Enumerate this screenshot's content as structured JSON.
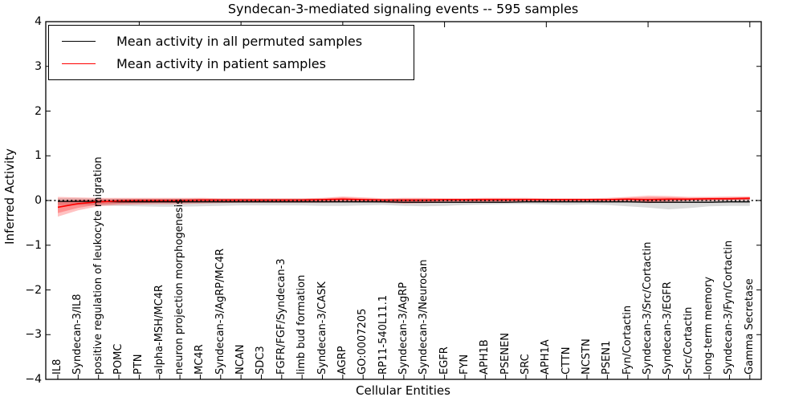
{
  "chart_data": {
    "type": "line",
    "title": "Syndecan-3-mediated signaling events -- 595 samples",
    "xlabel": "Cellular Entities",
    "ylabel": "Inferred Activity",
    "ylim": [
      -4,
      4
    ],
    "yticks": [
      4,
      3,
      2,
      1,
      0,
      -1,
      -2,
      -3,
      -4
    ],
    "ytick_labels": [
      "4",
      "3",
      "2",
      "1",
      "0",
      "−1",
      "−2",
      "−3",
      "−4"
    ],
    "grid": false,
    "zero_reference_line": true,
    "legend_position": "upper-left",
    "colors": {
      "permuted": "#000000",
      "patient": "#ff0000",
      "permuted_band": "rgba(0,0,0,0.14)",
      "patient_band": "rgba(255,0,0,0.24)"
    },
    "categories": [
      "IL8",
      "Syndecan-3/IL8",
      "positive regulation of leukocyte migration",
      "POMC",
      "PTN",
      "alpha-MSH/MC4R",
      "neuron projection morphogenesis",
      "MC4R",
      "Syndecan-3/AgRP/MC4R",
      "NCAN",
      "SDC3",
      "FGFR/FGF/Syndecan-3",
      "limb bud formation",
      "Syndecan-3/CASK",
      "AGRP",
      "GO:0007205",
      "RP11-540L11.1",
      "Syndecan-3/AgRP",
      "Syndecan-3/Neurocan",
      "EGFR",
      "FYN",
      "APH1B",
      "PSENEN",
      "SRC",
      "APH1A",
      "CTTN",
      "NCSTN",
      "PSEN1",
      "Fyn/Cortactin",
      "Syndecan-3/Src/Cortactin",
      "Syndecan-3/EGFR",
      "Src/Cortactin",
      "long-term memory",
      "Syndecan-3/Fyn/Cortactin",
      "Gamma Secretase"
    ],
    "series": [
      {
        "name": "Mean activity in all permuted samples",
        "color": "#000000",
        "values": [
          -0.02,
          -0.02,
          -0.02,
          -0.03,
          -0.03,
          -0.03,
          -0.03,
          -0.03,
          -0.03,
          -0.03,
          -0.03,
          -0.03,
          -0.03,
          -0.03,
          -0.03,
          -0.03,
          -0.03,
          -0.04,
          -0.04,
          -0.04,
          -0.04,
          -0.04,
          -0.04,
          -0.03,
          -0.03,
          -0.03,
          -0.03,
          -0.03,
          -0.03,
          -0.04,
          -0.04,
          -0.04,
          -0.04,
          -0.03,
          -0.03
        ],
        "band_upper": [
          0.05,
          0.05,
          0.04,
          0.04,
          0.04,
          0.04,
          0.04,
          0.04,
          0.04,
          0.04,
          0.04,
          0.04,
          0.04,
          0.04,
          0.04,
          0.03,
          0.03,
          0.03,
          0.03,
          0.03,
          0.03,
          0.03,
          0.03,
          0.03,
          0.03,
          0.03,
          0.03,
          0.03,
          0.04,
          0.04,
          0.04,
          0.04,
          0.04,
          0.04,
          0.04
        ],
        "band_lower": [
          -0.1,
          -0.1,
          -0.11,
          -0.12,
          -0.13,
          -0.14,
          -0.14,
          -0.13,
          -0.12,
          -0.11,
          -0.11,
          -0.11,
          -0.11,
          -0.12,
          -0.12,
          -0.11,
          -0.1,
          -0.12,
          -0.13,
          -0.12,
          -0.1,
          -0.09,
          -0.08,
          -0.08,
          -0.09,
          -0.1,
          -0.09,
          -0.1,
          -0.13,
          -0.16,
          -0.2,
          -0.17,
          -0.13,
          -0.12,
          -0.12
        ]
      },
      {
        "name": "Mean activity in patient samples",
        "color": "#ff0000",
        "values": [
          -0.15,
          -0.07,
          -0.03,
          -0.01,
          0.0,
          0.0,
          0.0,
          0.01,
          0.01,
          0.01,
          0.01,
          0.01,
          0.01,
          0.02,
          0.03,
          0.02,
          0.01,
          0.01,
          0.01,
          0.02,
          0.02,
          0.02,
          0.02,
          0.02,
          0.02,
          0.02,
          0.02,
          0.02,
          0.03,
          0.02,
          0.03,
          0.03,
          0.04,
          0.04,
          0.05
        ],
        "band_upper": [
          0.08,
          0.07,
          0.06,
          0.06,
          0.06,
          0.06,
          0.06,
          0.06,
          0.05,
          0.05,
          0.05,
          0.05,
          0.05,
          0.06,
          0.09,
          0.07,
          0.05,
          0.06,
          0.06,
          0.05,
          0.05,
          0.06,
          0.06,
          0.06,
          0.05,
          0.05,
          0.05,
          0.06,
          0.08,
          0.11,
          0.1,
          0.08,
          0.08,
          0.09,
          0.09
        ],
        "band_lower": [
          -0.36,
          -0.22,
          -0.13,
          -0.1,
          -0.09,
          -0.08,
          -0.08,
          -0.07,
          -0.06,
          -0.05,
          -0.05,
          -0.05,
          -0.05,
          -0.05,
          -0.04,
          -0.04,
          -0.05,
          -0.07,
          -0.06,
          -0.04,
          -0.04,
          -0.04,
          -0.04,
          -0.03,
          -0.03,
          -0.03,
          -0.03,
          -0.02,
          -0.02,
          -0.06,
          -0.03,
          -0.01,
          -0.01,
          0.0,
          0.0
        ]
      }
    ]
  }
}
